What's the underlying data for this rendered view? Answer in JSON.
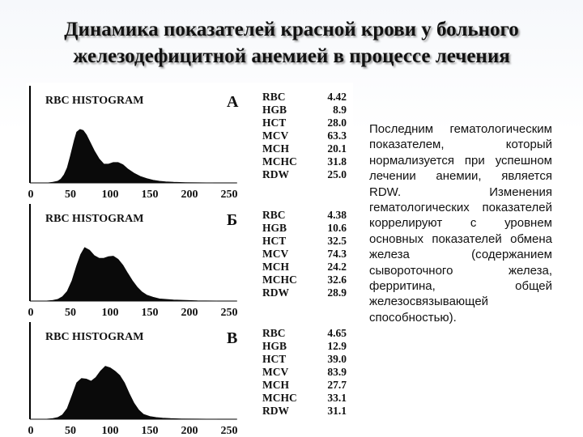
{
  "slide": {
    "title_line1": "Динамика показателей красной крови у больного",
    "title_line2": "железодефицитной анемией в процессе лечения",
    "text": "Последним гематологическим показателем, который нормализуется при успешном лечении анемии, является RDW. Изменения гематологических показателей коррелируют с уровнем основных показателей обмена железа (содержанием сывороточного железа, ферритина, общей железосвязывающей способностью)."
  },
  "colors": {
    "fill": "#0a0a0a",
    "text": "#111111"
  },
  "chart_data": [
    {
      "type": "area",
      "title": "RBC HISTOGRAM",
      "panel_label": "А",
      "x_ticks": [
        0,
        50,
        100,
        150,
        200,
        250
      ],
      "x": [
        0,
        22,
        28,
        34,
        38,
        42,
        46,
        50,
        55,
        58,
        62,
        66,
        70,
        74,
        80,
        86,
        92,
        98,
        104,
        110,
        116,
        122,
        130,
        138,
        146,
        154,
        162,
        170,
        180,
        195,
        210,
        230
      ],
      "y": [
        0,
        0,
        1,
        3,
        7,
        15,
        28,
        50,
        80,
        95,
        100,
        98,
        90,
        78,
        60,
        45,
        35,
        35,
        38,
        38,
        34,
        26,
        18,
        12,
        8,
        5,
        3,
        2,
        1,
        0.4,
        0.1,
        0
      ],
      "params": [
        {
          "name": "RBC",
          "value": "4.42"
        },
        {
          "name": "HGB",
          "value": "8.9"
        },
        {
          "name": "HCT",
          "value": "28.0"
        },
        {
          "name": "MCV",
          "value": "63.3"
        },
        {
          "name": "MCH",
          "value": "20.1"
        },
        {
          "name": "MCHC",
          "value": "31.8"
        },
        {
          "name": "RDW",
          "value": "25.0"
        }
      ]
    },
    {
      "type": "area",
      "title": "RBC HISTOGRAM",
      "panel_label": "Б",
      "x_ticks": [
        0,
        50,
        100,
        150,
        200,
        250
      ],
      "x": [
        0,
        20,
        28,
        34,
        40,
        46,
        52,
        58,
        63,
        68,
        74,
        80,
        86,
        92,
        98,
        104,
        110,
        116,
        122,
        128,
        134,
        140,
        146,
        154,
        162,
        170,
        180,
        195,
        210,
        235
      ],
      "y": [
        0,
        0,
        1,
        3,
        8,
        18,
        38,
        66,
        87,
        100,
        95,
        85,
        80,
        80,
        83,
        84,
        78,
        67,
        52,
        38,
        26,
        17,
        11,
        7,
        4,
        3,
        2,
        1,
        0.3,
        0
      ],
      "params": [
        {
          "name": "RBC",
          "value": "4.38"
        },
        {
          "name": "HGB",
          "value": "10.6"
        },
        {
          "name": "HCT",
          "value": "32.5"
        },
        {
          "name": "MCV",
          "value": "74.3"
        },
        {
          "name": "MCH",
          "value": "24.2"
        },
        {
          "name": "MCHC",
          "value": "32.6"
        },
        {
          "name": "RDW",
          "value": "28.9"
        }
      ]
    },
    {
      "type": "area",
      "title": "RBC HISTOGRAM",
      "panel_label": "В",
      "x_ticks": [
        0,
        50,
        100,
        150,
        200,
        250
      ],
      "x": [
        0,
        20,
        28,
        34,
        40,
        46,
        52,
        58,
        64,
        70,
        76,
        82,
        88,
        94,
        100,
        106,
        112,
        118,
        124,
        130,
        136,
        142,
        150,
        158,
        166,
        176,
        190,
        210,
        235
      ],
      "y": [
        0,
        0,
        1,
        3,
        8,
        20,
        44,
        68,
        76,
        75,
        71,
        78,
        90,
        99,
        96,
        90,
        82,
        68,
        48,
        30,
        17,
        9,
        5,
        3,
        2,
        1,
        0.4,
        0.1,
        0
      ],
      "params": [
        {
          "name": "RBC",
          "value": "4.65"
        },
        {
          "name": "HGB",
          "value": "12.9"
        },
        {
          "name": "HCT",
          "value": "39.0"
        },
        {
          "name": "MCV",
          "value": "83.9"
        },
        {
          "name": "MCH",
          "value": "27.7"
        },
        {
          "name": "MCHC",
          "value": "33.1"
        },
        {
          "name": "RDW",
          "value": "31.1"
        }
      ]
    }
  ]
}
